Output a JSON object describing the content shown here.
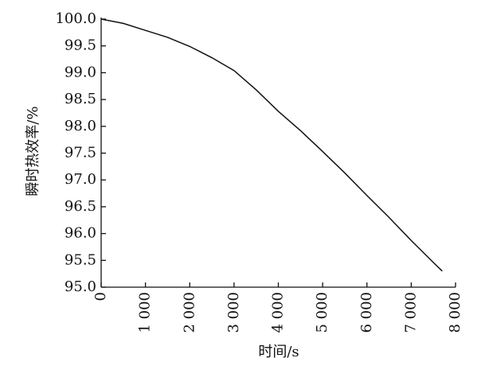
{
  "chart_data": {
    "type": "line",
    "x_label": "时间/s",
    "y_label": "瞬时热效率/%",
    "x": [
      0,
      500,
      1000,
      1500,
      2000,
      2500,
      3000,
      3500,
      4000,
      4500,
      5000,
      5500,
      6000,
      6500,
      7000,
      7500,
      7700
    ],
    "series": [
      {
        "name": "瞬时热效率",
        "color": "#111111",
        "values": [
          100.0,
          99.92,
          99.79,
          99.66,
          99.49,
          99.28,
          99.04,
          98.68,
          98.28,
          97.92,
          97.53,
          97.13,
          96.71,
          96.3,
          95.87,
          95.46,
          95.3
        ]
      }
    ],
    "xlim": [
      0,
      8000
    ],
    "xticks": [
      0,
      {
        "value": 1000,
        "label": "1 000"
      },
      {
        "value": 2000,
        "label": "2 000"
      },
      {
        "value": 3000,
        "label": "3 000"
      },
      {
        "value": 4000,
        "label": "4 000"
      },
      {
        "value": 5000,
        "label": "5 000"
      },
      {
        "value": 6000,
        "label": "6 000"
      },
      {
        "value": 7000,
        "label": "7 000"
      },
      {
        "value": 8000,
        "label": "8 000"
      }
    ],
    "ylim": [
      95,
      100
    ],
    "yticks": [
      {
        "value": 95,
        "label": "95.0"
      },
      95.5,
      {
        "value": 96,
        "label": "96.0"
      },
      96.5,
      {
        "value": 97,
        "label": "97.0"
      },
      97.5,
      {
        "value": 98,
        "label": "98.0"
      },
      98.5,
      {
        "value": 99,
        "label": "99.0"
      },
      99.5,
      {
        "value": 100,
        "label": "100.0"
      }
    ]
  }
}
